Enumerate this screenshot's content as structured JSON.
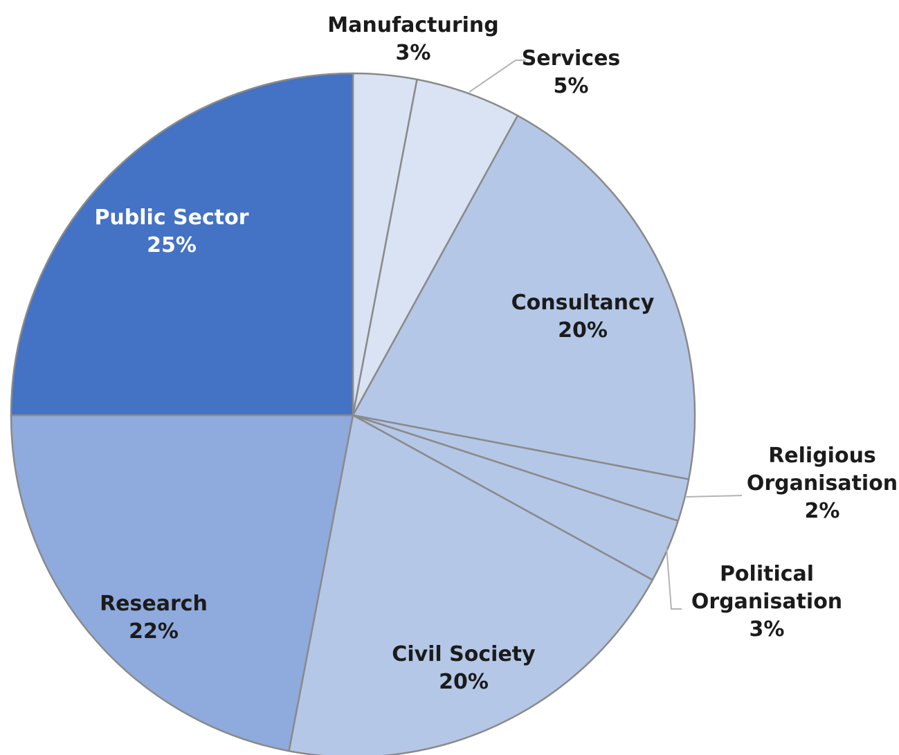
{
  "chart_data": {
    "type": "pie",
    "title": "",
    "unit": "%",
    "slices": [
      {
        "name": "Manufacturing",
        "value": 3,
        "value_label": "3%",
        "color": "#dae3f3"
      },
      {
        "name": "Services",
        "value": 5,
        "value_label": "5%",
        "color": "#dae3f3"
      },
      {
        "name": "Consultancy",
        "value": 20,
        "value_label": "20%",
        "color": "#b4c7e7"
      },
      {
        "name": "Religious Organisation",
        "value": 2,
        "value_label": "2%",
        "color": "#b4c7e7"
      },
      {
        "name": "Political Organisation",
        "value": 3,
        "value_label": "3%",
        "color": "#b4c7e7"
      },
      {
        "name": "Civil Society",
        "value": 20,
        "value_label": "20%",
        "color": "#b4c7e7"
      },
      {
        "name": "Research",
        "value": 22,
        "value_label": "22%",
        "color": "#8faadc"
      },
      {
        "name": "Public Sector",
        "value": 25,
        "value_label": "25%",
        "color": "#4472c4"
      }
    ],
    "start_angle_deg": 0,
    "direction": "clockwise",
    "legend": "none",
    "stroke_color": "#8a8a8a",
    "label_color": "#1b1b1b",
    "label_color_on_dark": "#ffffff"
  }
}
